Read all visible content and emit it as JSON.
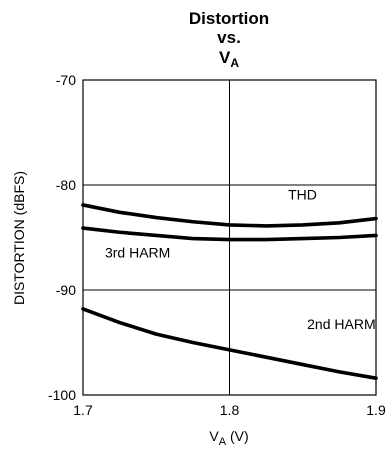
{
  "chart_data": {
    "type": "line",
    "title": {
      "line1": "Distortion",
      "line2": "vs.",
      "line3_main": "V",
      "line3_sub": "A"
    },
    "xlabel": {
      "main": "V",
      "sub": "A",
      "rest": " (V)"
    },
    "ylabel": "DISTORTION (dBFS)",
    "xlim": [
      1.7,
      1.9
    ],
    "ylim": [
      -100,
      -70
    ],
    "xticks": [
      1.7,
      1.8,
      1.9
    ],
    "xtick_labels": [
      "1.7",
      "1.8",
      "1.9"
    ],
    "yticks": [
      -100,
      -90,
      -80,
      -70
    ],
    "ytick_labels": [
      "-100",
      "-90",
      "-80",
      "-70"
    ],
    "grid": true,
    "series": [
      {
        "name": "THD",
        "x": [
          1.7,
          1.725,
          1.75,
          1.775,
          1.8,
          1.825,
          1.85,
          1.875,
          1.9
        ],
        "y": [
          -81.9,
          -82.6,
          -83.1,
          -83.5,
          -83.8,
          -83.9,
          -83.8,
          -83.6,
          -83.2
        ]
      },
      {
        "name": "3rd HARM",
        "x": [
          1.7,
          1.725,
          1.75,
          1.775,
          1.8,
          1.825,
          1.85,
          1.875,
          1.9
        ],
        "y": [
          -84.1,
          -84.5,
          -84.8,
          -85.1,
          -85.2,
          -85.2,
          -85.1,
          -85.0,
          -84.8
        ]
      },
      {
        "name": "2nd HARM",
        "x": [
          1.7,
          1.725,
          1.75,
          1.775,
          1.8,
          1.825,
          1.85,
          1.875,
          1.9
        ],
        "y": [
          -91.8,
          -93.1,
          -94.2,
          -95.0,
          -95.7,
          -96.4,
          -97.1,
          -97.8,
          -98.4
        ]
      }
    ],
    "annotations": [
      {
        "text": "THD",
        "x": 1.84,
        "y": -81.4
      },
      {
        "text": "3rd HARM",
        "x": 1.715,
        "y": -86.9
      },
      {
        "text": "2nd HARM",
        "x": 1.853,
        "y": -93.7
      }
    ]
  }
}
